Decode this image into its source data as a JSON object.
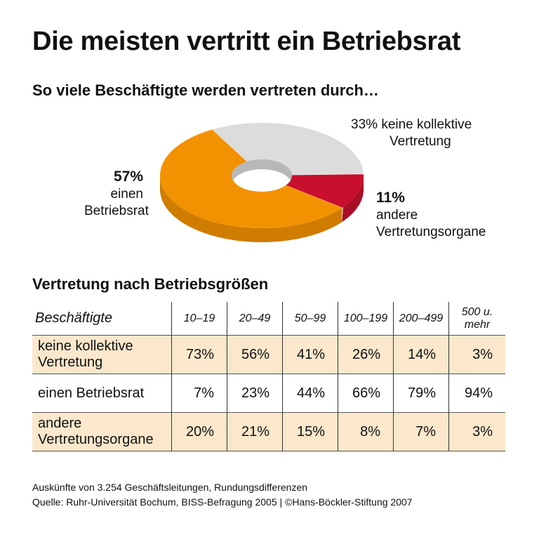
{
  "title": "Die meisten vertritt ein Betriebsrat",
  "subtitle": "So viele Beschäftigte werden vertreten durch…",
  "chart_data": [
    {
      "type": "pie",
      "variant": "3d-donut",
      "title": "So viele Beschäftigte werden vertreten durch…",
      "slices": [
        {
          "label": "keine kollektive Vertretung",
          "pct_label": "33%",
          "value": 33,
          "color": "#dcdcdc"
        },
        {
          "label": "andere Vertretungsorgane",
          "pct_label": "11%",
          "value": 11,
          "color": "#c8102e"
        },
        {
          "label": "einen Betriebsrat",
          "pct_label": "57%",
          "value": 57,
          "color": "#f39200"
        }
      ]
    },
    {
      "type": "table",
      "title": "Vertretung nach Betriebsgrößen",
      "header": "Beschäftigte",
      "columns": [
        "10–19",
        "20–49",
        "50–99",
        "100–199",
        "200–499",
        "500 u. mehr"
      ],
      "rows": [
        {
          "label": "keine kollektive Vertretung",
          "values": [
            "73%",
            "56%",
            "41%",
            "26%",
            "14%",
            "3%"
          ]
        },
        {
          "label": "einen Betriebsrat",
          "values": [
            "7%",
            "23%",
            "44%",
            "66%",
            "79%",
            "94%"
          ]
        },
        {
          "label": "andere Vertretungsorgane",
          "values": [
            "20%",
            "21%",
            "15%",
            "8%",
            "7%",
            "3%"
          ]
        }
      ]
    }
  ],
  "labels": {
    "keine": {
      "pct": "33%",
      "text1": "keine kollektive",
      "text2": "Vertretung"
    },
    "andere": {
      "pct": "11%",
      "text1": "andere",
      "text2": "Vertretungsorgane"
    },
    "betriebsrat": {
      "pct": "57%",
      "text1": "einen",
      "text2": "Betriebsrat"
    }
  },
  "table_title": "Vertretung nach Betriebsgrößen",
  "footer": {
    "line1": "Auskünfte von 3.254 Geschäftsleitungen, Rundungsdifferenzen",
    "line2": "Quelle: Ruhr-Universität Bochum, BISS-Befragung 2005 | ©Hans-Böckler-Stiftung 2007"
  }
}
